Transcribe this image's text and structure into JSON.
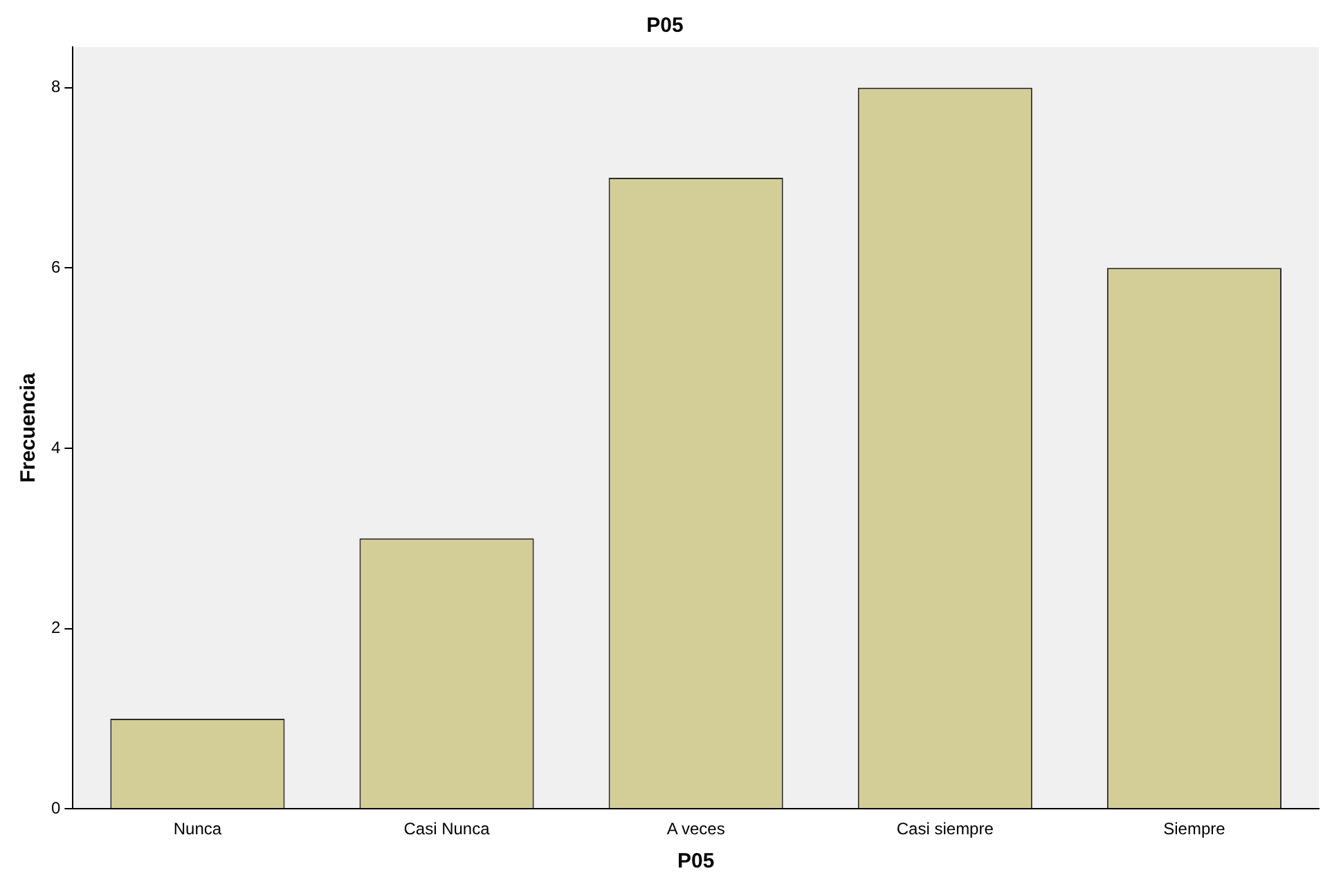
{
  "chart_data": {
    "type": "bar",
    "title": "P05",
    "xlabel": "P05",
    "ylabel": "Frecuencia",
    "categories": [
      "Nunca",
      "Casi Nunca",
      "A veces",
      "Casi siempre",
      "Siempre"
    ],
    "values": [
      1,
      3,
      7,
      8,
      6
    ],
    "color": "#d3ce97",
    "ylim": [
      0,
      8.45
    ],
    "yticks": [
      0,
      2,
      4,
      6,
      8
    ],
    "grid": false,
    "legend": false
  }
}
